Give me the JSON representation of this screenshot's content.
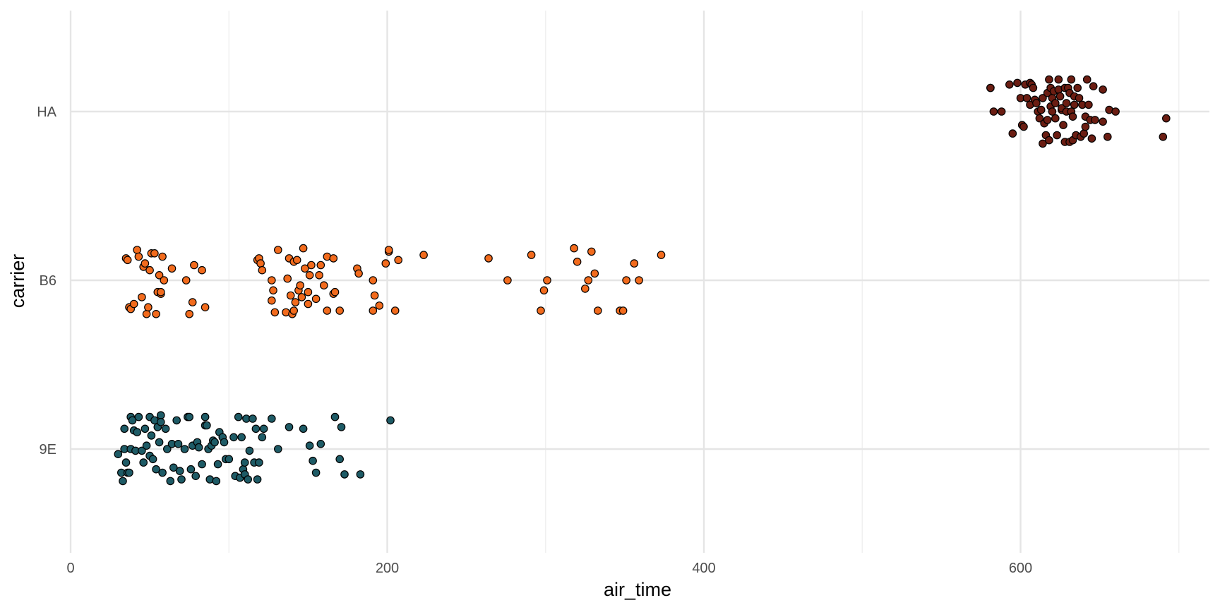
{
  "chart_data": {
    "type": "scatter",
    "title": "",
    "xlabel": "air_time",
    "ylabel": "carrier",
    "xlim": [
      -10,
      720
    ],
    "x_ticks": [
      0,
      200,
      400,
      600
    ],
    "x_tick_labels": [
      "0",
      "200",
      "400",
      "600"
    ],
    "x_minor_ticks": [
      100,
      300,
      500,
      700
    ],
    "categories": [
      "9E",
      "B6",
      "HA"
    ],
    "grid": true,
    "legend": "none",
    "jitter": "vertical",
    "series": [
      {
        "category": "9E",
        "color": "#1e5b66",
        "points": [
          [
            30,
            -0.03
          ],
          [
            32,
            -0.14
          ],
          [
            33,
            -0.19
          ],
          [
            34,
            0.12
          ],
          [
            34,
            0.0
          ],
          [
            35,
            -0.08
          ],
          [
            36,
            -0.14
          ],
          [
            37,
            -0.14
          ],
          [
            38,
            0.19
          ],
          [
            38,
            0.0
          ],
          [
            39,
            0.17
          ],
          [
            40,
            0.11
          ],
          [
            41,
            -0.01
          ],
          [
            42,
            0.1
          ],
          [
            43,
            0.19
          ],
          [
            45,
            -0.01
          ],
          [
            46,
            -0.08
          ],
          [
            47,
            0.12
          ],
          [
            48,
            0.02
          ],
          [
            50,
            0.19
          ],
          [
            50,
            -0.04
          ],
          [
            51,
            0.08
          ],
          [
            52,
            -0.06
          ],
          [
            53,
            0.17
          ],
          [
            54,
            -0.12
          ],
          [
            55,
            0.13
          ],
          [
            56,
            0.04
          ],
          [
            57,
            0.2
          ],
          [
            57,
            0.16
          ],
          [
            58,
            -0.14
          ],
          [
            60,
            0.12
          ],
          [
            61,
            0.0
          ],
          [
            63,
            -0.19
          ],
          [
            64,
            0.03
          ],
          [
            65,
            -0.11
          ],
          [
            67,
            0.17
          ],
          [
            68,
            0.03
          ],
          [
            69,
            -0.13
          ],
          [
            70,
            -0.18
          ],
          [
            72,
            0.0
          ],
          [
            74,
            0.19
          ],
          [
            75,
            0.19
          ],
          [
            76,
            -0.12
          ],
          [
            77,
            0.02
          ],
          [
            79,
            -0.16
          ],
          [
            80,
            0.04
          ],
          [
            81,
            0.01
          ],
          [
            83,
            -0.09
          ],
          [
            85,
            0.19
          ],
          [
            85,
            0.14
          ],
          [
            86,
            0.14
          ],
          [
            87,
            0.0
          ],
          [
            88,
            -0.18
          ],
          [
            89,
            0.02
          ],
          [
            90,
            0.05
          ],
          [
            91,
            0.04
          ],
          [
            92,
            -0.19
          ],
          [
            93,
            -0.09
          ],
          [
            94,
            0.1
          ],
          [
            96,
            0.07
          ],
          [
            97,
            0.04
          ],
          [
            98,
            -0.06
          ],
          [
            100,
            -0.06
          ],
          [
            103,
            0.07
          ],
          [
            104,
            -0.16
          ],
          [
            106,
            0.19
          ],
          [
            107,
            -0.17
          ],
          [
            108,
            0.07
          ],
          [
            109,
            -0.12
          ],
          [
            110,
            -0.15
          ],
          [
            110,
            -0.08
          ],
          [
            111,
            0.18
          ],
          [
            112,
            -0.18
          ],
          [
            113,
            -0.01
          ],
          [
            115,
            0.18
          ],
          [
            116,
            -0.08
          ],
          [
            117,
            0.12
          ],
          [
            118,
            -0.18
          ],
          [
            119,
            -0.08
          ],
          [
            121,
            0.07
          ],
          [
            122,
            0.12
          ],
          [
            127,
            0.18
          ],
          [
            131,
            0.0
          ],
          [
            138,
            0.13
          ],
          [
            147,
            0.12
          ],
          [
            151,
            0.02
          ],
          [
            153,
            -0.07
          ],
          [
            155,
            -0.14
          ],
          [
            158,
            0.03
          ],
          [
            167,
            0.19
          ],
          [
            170,
            -0.06
          ],
          [
            171,
            0.13
          ],
          [
            173,
            -0.15
          ],
          [
            183,
            -0.15
          ],
          [
            202,
            0.17
          ]
        ]
      },
      {
        "category": "B6",
        "color": "#f26b1d",
        "points": [
          [
            35,
            0.13
          ],
          [
            36,
            0.12
          ],
          [
            37,
            -0.16
          ],
          [
            38,
            -0.17
          ],
          [
            40,
            -0.14
          ],
          [
            42,
            0.18
          ],
          [
            43,
            0.14
          ],
          [
            45,
            -0.1
          ],
          [
            46,
            0.08
          ],
          [
            47,
            0.1
          ],
          [
            48,
            -0.2
          ],
          [
            49,
            -0.16
          ],
          [
            50,
            0.06
          ],
          [
            51,
            0.16
          ],
          [
            53,
            0.16
          ],
          [
            54,
            -0.2
          ],
          [
            55,
            -0.07
          ],
          [
            56,
            0.03
          ],
          [
            57,
            -0.08
          ],
          [
            57,
            -0.07
          ],
          [
            58,
            0.14
          ],
          [
            59,
            0.0
          ],
          [
            64,
            0.07
          ],
          [
            73,
            0.0
          ],
          [
            75,
            -0.2
          ],
          [
            77,
            -0.13
          ],
          [
            78,
            0.09
          ],
          [
            83,
            0.06
          ],
          [
            85,
            -0.16
          ],
          [
            118,
            0.12
          ],
          [
            119,
            0.13
          ],
          [
            120,
            0.1
          ],
          [
            121,
            0.06
          ],
          [
            127,
            -0.12
          ],
          [
            127,
            0.0
          ],
          [
            128,
            -0.06
          ],
          [
            129,
            -0.19
          ],
          [
            131,
            0.18
          ],
          [
            136,
            -0.19
          ],
          [
            137,
            0.01
          ],
          [
            138,
            0.13
          ],
          [
            139,
            -0.09
          ],
          [
            140,
            -0.2
          ],
          [
            141,
            0.11
          ],
          [
            141,
            -0.18
          ],
          [
            142,
            -0.13
          ],
          [
            143,
            0.12
          ],
          [
            144,
            -0.06
          ],
          [
            145,
            -0.03
          ],
          [
            146,
            -0.1
          ],
          [
            147,
            0.19
          ],
          [
            148,
            0.07
          ],
          [
            150,
            -0.14
          ],
          [
            150,
            -0.07
          ],
          [
            151,
            0.03
          ],
          [
            152,
            0.09
          ],
          [
            155,
            -0.11
          ],
          [
            157,
            0.03
          ],
          [
            158,
            0.09
          ],
          [
            160,
            -0.03
          ],
          [
            162,
            0.14
          ],
          [
            162,
            -0.18
          ],
          [
            166,
            0.13
          ],
          [
            166,
            -0.08
          ],
          [
            167,
            -0.07
          ],
          [
            170,
            -0.18
          ],
          [
            181,
            0.07
          ],
          [
            182,
            0.04
          ],
          [
            191,
            0.0
          ],
          [
            191,
            -0.18
          ],
          [
            192,
            -0.09
          ],
          [
            195,
            -0.15
          ],
          [
            199,
            0.1
          ],
          [
            201,
            0.17
          ],
          [
            201,
            0.18
          ],
          [
            205,
            -0.18
          ],
          [
            207,
            0.12
          ],
          [
            223,
            0.15
          ],
          [
            264,
            0.13
          ],
          [
            276,
            0.0
          ],
          [
            291,
            0.15
          ],
          [
            297,
            -0.18
          ],
          [
            299,
            -0.06
          ],
          [
            301,
            0.0
          ],
          [
            318,
            0.19
          ],
          [
            320,
            0.11
          ],
          [
            325,
            -0.05
          ],
          [
            327,
            0.0
          ],
          [
            329,
            0.17
          ],
          [
            331,
            0.04
          ],
          [
            333,
            -0.18
          ],
          [
            347,
            -0.18
          ],
          [
            349,
            -0.18
          ],
          [
            351,
            0.0
          ],
          [
            356,
            0.1
          ],
          [
            359,
            0.0
          ],
          [
            373,
            0.15
          ]
        ]
      },
      {
        "category": "HA",
        "color": "#6b1d12",
        "points": [
          [
            581,
            0.14
          ],
          [
            581,
            0.14
          ],
          [
            583,
            0.0
          ],
          [
            588,
            0.0
          ],
          [
            593,
            0.16
          ],
          [
            595,
            -0.13
          ],
          [
            598,
            0.17
          ],
          [
            600,
            0.08
          ],
          [
            601,
            -0.08
          ],
          [
            602,
            -0.09
          ],
          [
            603,
            0.16
          ],
          [
            604,
            0.08
          ],
          [
            606,
            0.04
          ],
          [
            606,
            0.17
          ],
          [
            607,
            0.16
          ],
          [
            608,
            0.14
          ],
          [
            609,
            0.07
          ],
          [
            610,
            0.05
          ],
          [
            611,
            0.0
          ],
          [
            612,
            -0.04
          ],
          [
            613,
            0.01
          ],
          [
            614,
            0.08
          ],
          [
            614,
            -0.19
          ],
          [
            615,
            -0.07
          ],
          [
            616,
            -0.14
          ],
          [
            617,
            0.11
          ],
          [
            617,
            -0.05
          ],
          [
            618,
            -0.17
          ],
          [
            618,
            0.19
          ],
          [
            619,
            0.14
          ],
          [
            619,
            0.03
          ],
          [
            620,
            0.08
          ],
          [
            620,
            0.0
          ],
          [
            621,
            0.12
          ],
          [
            622,
            0.05
          ],
          [
            622,
            -0.04
          ],
          [
            623,
            -0.14
          ],
          [
            624,
            0.19
          ],
          [
            624,
            0.13
          ],
          [
            625,
            0.09
          ],
          [
            626,
            0.01
          ],
          [
            626,
            0.02
          ],
          [
            627,
            -0.08
          ],
          [
            628,
            0.14
          ],
          [
            628,
            -0.18
          ],
          [
            629,
            0.05
          ],
          [
            629,
            0.0
          ],
          [
            630,
            0.14
          ],
          [
            631,
            0.11
          ],
          [
            631,
            -0.18
          ],
          [
            632,
            0.19
          ],
          [
            632,
            0.0
          ],
          [
            633,
            -0.03
          ],
          [
            633,
            -0.17
          ],
          [
            634,
            0.04
          ],
          [
            634,
            0.09
          ],
          [
            635,
            -0.14
          ],
          [
            636,
            0.14
          ],
          [
            637,
            0.08
          ],
          [
            638,
            -0.15
          ],
          [
            639,
            0.04
          ],
          [
            640,
            -0.13
          ],
          [
            641,
            -0.03
          ],
          [
            641,
            -0.09
          ],
          [
            642,
            0.19
          ],
          [
            643,
            0.04
          ],
          [
            644,
            -0.05
          ],
          [
            645,
            -0.16
          ],
          [
            646,
            0.15
          ],
          [
            647,
            -0.05
          ],
          [
            652,
            -0.06
          ],
          [
            652,
            0.13
          ],
          [
            655,
            -0.15
          ],
          [
            656,
            0.01
          ],
          [
            660,
            0.0
          ],
          [
            690,
            -0.15
          ],
          [
            692,
            -0.04
          ]
        ]
      }
    ]
  }
}
